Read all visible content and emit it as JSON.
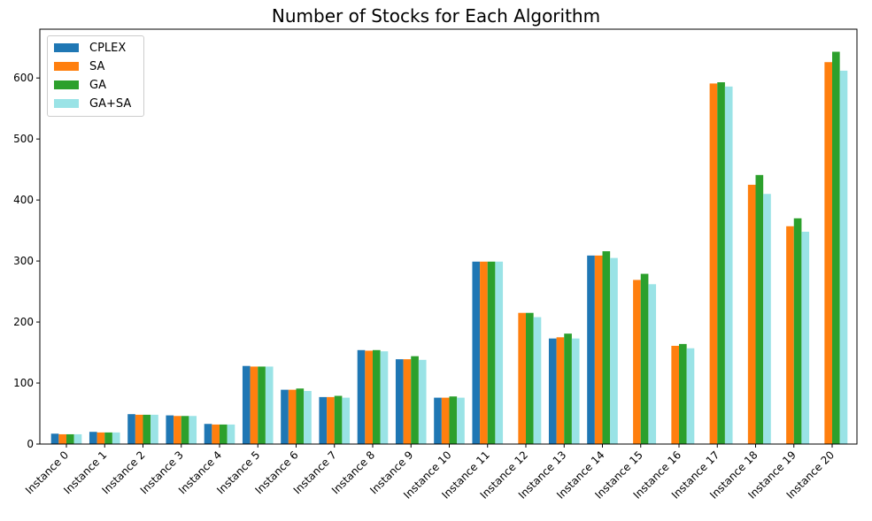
{
  "chart_data": {
    "type": "bar",
    "title": "Number of Stocks for Each Algorithm",
    "xlabel": "",
    "ylabel": "",
    "ylim": [
      0,
      680
    ],
    "yticks": [
      0,
      100,
      200,
      300,
      400,
      500,
      600
    ],
    "legend_position": "top-left",
    "grid": false,
    "categories": [
      "Instance 0",
      "Instance 1",
      "Instance 2",
      "Instance 3",
      "Instance 4",
      "Instance 5",
      "Instance 6",
      "Instance 7",
      "Instance 8",
      "Instance 9",
      "Instance 10",
      "Instance 11",
      "Instance 12",
      "Instance 13",
      "Instance 14",
      "Instance 15",
      "Instance 16",
      "Instance 17",
      "Instance 18",
      "Instance 19",
      "Instance 20"
    ],
    "series": [
      {
        "name": "CPLEX",
        "color": "#1f77b4",
        "values": [
          17,
          20,
          49,
          47,
          33,
          128,
          89,
          77,
          154,
          139,
          76,
          299,
          0,
          173,
          309,
          0,
          0,
          0,
          0,
          0,
          0
        ]
      },
      {
        "name": "SA",
        "color": "#ff7f0e",
        "values": [
          16,
          19,
          48,
          46,
          32,
          127,
          89,
          77,
          153,
          139,
          76,
          299,
          215,
          175,
          309,
          269,
          161,
          591,
          425,
          357,
          626
        ]
      },
      {
        "name": "GA",
        "color": "#2ca02c",
        "values": [
          16,
          19,
          48,
          46,
          32,
          127,
          91,
          79,
          154,
          144,
          78,
          299,
          215,
          181,
          316,
          279,
          164,
          593,
          441,
          370,
          643
        ]
      },
      {
        "name": "GA+SA",
        "color": "#9ae3e6",
        "values": [
          16,
          19,
          48,
          46,
          32,
          127,
          87,
          76,
          152,
          138,
          76,
          299,
          208,
          173,
          305,
          262,
          157,
          586,
          410,
          348,
          612
        ]
      }
    ]
  }
}
